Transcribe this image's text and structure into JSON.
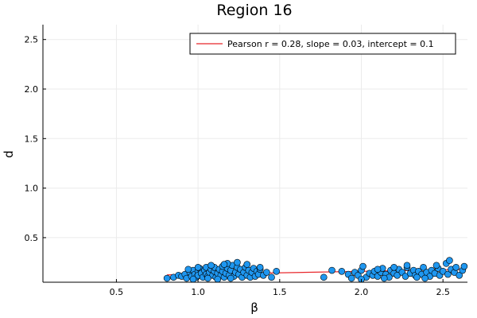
{
  "chart_data": {
    "type": "scatter",
    "title": "Region 16",
    "xlabel": "β",
    "ylabel": "d",
    "xlim": [
      0.05,
      2.65
    ],
    "ylim": [
      0.05,
      2.65
    ],
    "xticks": [
      0.5,
      1.0,
      1.5,
      2.0,
      2.5
    ],
    "xtick_labels": [
      "0.5",
      "1.0",
      "1.5",
      "2.0",
      "2.5"
    ],
    "yticks": [
      0.5,
      1.0,
      1.5,
      2.0,
      2.5
    ],
    "ytick_labels": [
      "0.5",
      "1.0",
      "1.5",
      "2.0",
      "2.5"
    ],
    "grid": true,
    "legend_position": "top-right",
    "colors": {
      "points": "#1f97f0",
      "fit": "#e8262a",
      "grid": "#ebebeb"
    },
    "fit_line": {
      "label": "Pearson r = 0.28, slope = 0.03, intercept = 0.1",
      "slope": 0.03,
      "intercept": 0.1
    },
    "series": [
      {
        "points": [
          [
            0.81,
            0.09
          ],
          [
            0.85,
            0.1
          ],
          [
            0.88,
            0.12
          ],
          [
            0.9,
            0.11
          ],
          [
            0.92,
            0.13
          ],
          [
            0.93,
            0.09
          ],
          [
            0.95,
            0.15
          ],
          [
            0.96,
            0.11
          ],
          [
            0.97,
            0.17
          ],
          [
            0.98,
            0.13
          ],
          [
            0.99,
            0.1
          ],
          [
            1.0,
            0.16
          ],
          [
            1.0,
            0.12
          ],
          [
            1.01,
            0.19
          ],
          [
            1.02,
            0.14
          ],
          [
            1.03,
            0.1
          ],
          [
            1.04,
            0.17
          ],
          [
            1.05,
            0.13
          ],
          [
            1.05,
            0.2
          ],
          [
            1.06,
            0.11
          ],
          [
            1.07,
            0.15
          ],
          [
            1.08,
            0.18
          ],
          [
            1.09,
            0.12
          ],
          [
            1.1,
            0.16
          ],
          [
            1.1,
            0.2
          ],
          [
            1.11,
            0.1
          ],
          [
            1.12,
            0.14
          ],
          [
            1.13,
            0.18
          ],
          [
            1.14,
            0.12
          ],
          [
            1.15,
            0.16
          ],
          [
            1.15,
            0.21
          ],
          [
            1.16,
            0.1
          ],
          [
            1.17,
            0.14
          ],
          [
            1.18,
            0.19
          ],
          [
            1.19,
            0.12
          ],
          [
            1.2,
            0.17
          ],
          [
            1.21,
            0.22
          ],
          [
            1.22,
            0.11
          ],
          [
            1.23,
            0.15
          ],
          [
            1.24,
            0.2
          ],
          [
            1.25,
            0.13
          ],
          [
            1.26,
            0.18
          ],
          [
            1.27,
            0.1
          ],
          [
            1.28,
            0.15
          ],
          [
            1.29,
            0.2
          ],
          [
            1.3,
            0.12
          ],
          [
            1.31,
            0.17
          ],
          [
            1.32,
            0.1
          ],
          [
            1.33,
            0.15
          ],
          [
            1.34,
            0.19
          ],
          [
            1.35,
            0.11
          ],
          [
            1.36,
            0.16
          ],
          [
            1.37,
            0.13
          ],
          [
            1.38,
            0.18
          ],
          [
            1.4,
            0.12
          ],
          [
            1.42,
            0.15
          ],
          [
            1.45,
            0.1
          ],
          [
            1.48,
            0.16
          ],
          [
            1.24,
            0.25
          ],
          [
            1.18,
            0.24
          ],
          [
            1.2,
            0.09
          ],
          [
            1.08,
            0.22
          ],
          [
            1.0,
            0.2
          ],
          [
            0.94,
            0.18
          ],
          [
            1.12,
            0.08
          ],
          [
            1.3,
            0.23
          ],
          [
            1.38,
            0.2
          ],
          [
            1.06,
            0.09
          ],
          [
            0.97,
            0.08
          ],
          [
            1.16,
            0.23
          ],
          [
            1.77,
            0.1
          ],
          [
            1.82,
            0.17
          ],
          [
            1.88,
            0.16
          ],
          [
            1.92,
            0.13
          ],
          [
            1.94,
            0.09
          ],
          [
            1.96,
            0.15
          ],
          [
            1.98,
            0.12
          ],
          [
            2.0,
            0.17
          ],
          [
            2.01,
            0.21
          ],
          [
            2.03,
            0.1
          ],
          [
            2.05,
            0.14
          ],
          [
            2.07,
            0.12
          ],
          [
            2.08,
            0.16
          ],
          [
            2.1,
            0.11
          ],
          [
            2.12,
            0.15
          ],
          [
            2.13,
            0.19
          ],
          [
            2.15,
            0.13
          ],
          [
            2.17,
            0.1
          ],
          [
            2.18,
            0.17
          ],
          [
            2.2,
            0.14
          ],
          [
            2.22,
            0.12
          ],
          [
            2.23,
            0.18
          ],
          [
            2.25,
            0.15
          ],
          [
            2.27,
            0.11
          ],
          [
            2.28,
            0.2
          ],
          [
            2.3,
            0.14
          ],
          [
            2.32,
            0.17
          ],
          [
            2.33,
            0.12
          ],
          [
            2.35,
            0.16
          ],
          [
            2.37,
            0.13
          ],
          [
            2.38,
            0.2
          ],
          [
            2.4,
            0.15
          ],
          [
            2.42,
            0.11
          ],
          [
            2.43,
            0.17
          ],
          [
            2.45,
            0.14
          ],
          [
            2.47,
            0.19
          ],
          [
            2.48,
            0.12
          ],
          [
            2.5,
            0.16
          ],
          [
            2.52,
            0.24
          ],
          [
            2.53,
            0.13
          ],
          [
            2.55,
            0.18
          ],
          [
            2.57,
            0.15
          ],
          [
            2.58,
            0.2
          ],
          [
            2.6,
            0.12
          ],
          [
            2.62,
            0.17
          ],
          [
            2.63,
            0.21
          ],
          [
            2.46,
            0.22
          ],
          [
            2.28,
            0.22
          ],
          [
            2.2,
            0.2
          ],
          [
            2.1,
            0.18
          ],
          [
            2.0,
            0.08
          ],
          [
            2.39,
            0.09
          ],
          [
            2.54,
            0.27
          ],
          [
            2.34,
            0.1
          ],
          [
            2.14,
            0.09
          ]
        ]
      }
    ]
  }
}
